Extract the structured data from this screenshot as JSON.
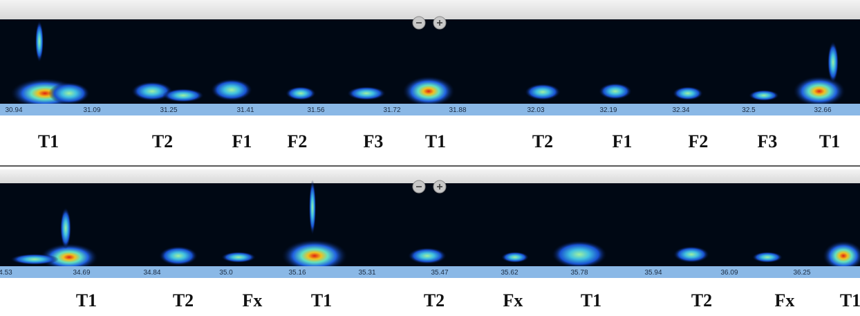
{
  "panels": [
    {
      "time_labels": [
        "30.94",
        "31.09",
        "31.25",
        "31.41",
        "31.56",
        "31.72",
        "31.88",
        "32.03",
        "32.19",
        "32.34",
        "32.5",
        "32.66"
      ],
      "syllables": [
        "T1",
        "T2",
        "F1",
        "F2",
        "F3",
        "T1",
        "T2",
        "F1",
        "F2",
        "F3",
        "T1"
      ]
    },
    {
      "time_labels": [
        "4.53",
        "34.69",
        "34.84",
        "35.0",
        "35.16",
        "35.31",
        "35.47",
        "35.62",
        "35.78",
        "35.94",
        "36.09",
        "36.25"
      ],
      "syllables": [
        "T1",
        "T2",
        "Fx",
        "T1",
        "T2",
        "Fx",
        "T1",
        "T2",
        "Fx",
        "T1"
      ]
    }
  ]
}
